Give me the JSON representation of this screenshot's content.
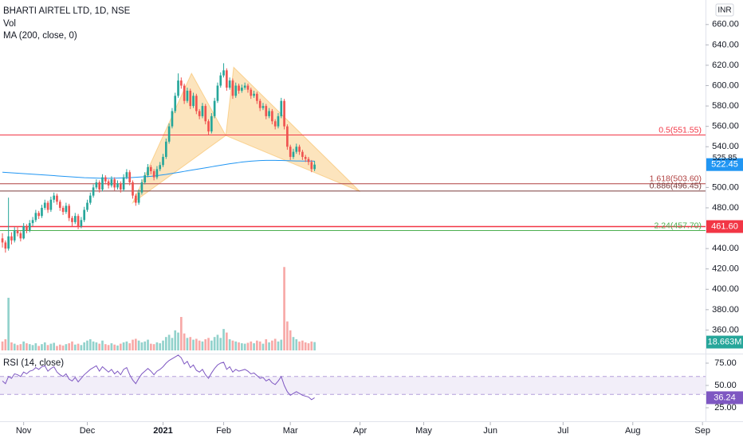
{
  "chart_data": {
    "type": "candlestick",
    "title": "BHARTI AIRTEL LTD, 1D, NSE",
    "currency": "INR",
    "up_color": "#26a69a",
    "down_color": "#ef5350",
    "xlim": [
      -0.8,
      232
    ],
    "xticks": [
      {
        "value": 7,
        "label": "Nov"
      },
      {
        "value": 28,
        "label": "Dec"
      },
      {
        "value": 53,
        "label": "2021"
      },
      {
        "value": 73,
        "label": "Feb"
      },
      {
        "value": 95,
        "label": "Mar"
      },
      {
        "value": 118,
        "label": "Apr"
      },
      {
        "value": 139,
        "label": "May"
      },
      {
        "value": 161,
        "label": "Jun"
      },
      {
        "value": 185,
        "label": "Jul"
      },
      {
        "value": 208,
        "label": "Aug"
      },
      {
        "value": 231,
        "label": "Sep"
      }
    ],
    "ylim": [
      340,
      670
    ],
    "yticks": [
      {
        "value": 660,
        "label": "660.00"
      },
      {
        "value": 640,
        "label": "640.00"
      },
      {
        "value": 620,
        "label": "620.00"
      },
      {
        "value": 600,
        "label": "600.00"
      },
      {
        "value": 580,
        "label": "580.00"
      },
      {
        "value": 560,
        "label": "560.00"
      },
      {
        "value": 540,
        "label": "540.00"
      },
      {
        "value": 500,
        "label": "500.00"
      },
      {
        "value": 480,
        "label": "480.00"
      },
      {
        "value": 440,
        "label": "440.00"
      },
      {
        "value": 420,
        "label": "420.00"
      },
      {
        "value": 400,
        "label": "400.00"
      },
      {
        "value": 380,
        "label": "380.00"
      },
      {
        "value": 360,
        "label": "360.00"
      }
    ],
    "ohlc": [
      [
        450,
        455,
        441,
        446
      ],
      [
        446,
        448,
        436,
        440
      ],
      [
        440,
        490,
        438,
        452
      ],
      [
        452,
        456,
        444,
        448
      ],
      [
        448,
        461,
        446,
        458
      ],
      [
        458,
        462,
        452,
        455
      ],
      [
        455,
        457,
        447,
        450
      ],
      [
        450,
        465,
        449,
        462
      ],
      [
        462,
        464,
        455,
        458
      ],
      [
        458,
        468,
        456,
        465
      ],
      [
        465,
        471,
        462,
        468
      ],
      [
        468,
        478,
        466,
        475
      ],
      [
        475,
        477,
        469,
        472
      ],
      [
        472,
        483,
        470,
        480
      ],
      [
        480,
        488,
        478,
        485
      ],
      [
        485,
        487,
        475,
        478
      ],
      [
        478,
        491,
        476,
        488
      ],
      [
        488,
        495,
        485,
        492
      ],
      [
        492,
        494,
        483,
        486
      ],
      [
        486,
        488,
        477,
        480
      ],
      [
        480,
        482,
        473,
        476
      ],
      [
        476,
        485,
        474,
        482
      ],
      [
        482,
        484,
        467,
        470
      ],
      [
        470,
        472,
        462,
        466
      ],
      [
        466,
        475,
        464,
        472
      ],
      [
        472,
        474,
        459,
        462
      ],
      [
        462,
        471,
        460,
        468
      ],
      [
        468,
        481,
        466,
        478
      ],
      [
        478,
        488,
        476,
        485
      ],
      [
        485,
        495,
        483,
        492
      ],
      [
        492,
        503,
        490,
        500
      ],
      [
        500,
        508,
        498,
        505
      ],
      [
        505,
        507,
        495,
        498
      ],
      [
        498,
        513,
        496,
        510
      ],
      [
        510,
        512,
        503,
        506
      ],
      [
        506,
        508,
        499,
        502
      ],
      [
        502,
        511,
        500,
        508
      ],
      [
        508,
        510,
        497,
        500
      ],
      [
        500,
        507,
        498,
        504
      ],
      [
        504,
        506,
        495,
        498
      ],
      [
        498,
        513,
        496,
        510
      ],
      [
        510,
        518,
        508,
        515
      ],
      [
        515,
        517,
        502,
        505
      ],
      [
        505,
        507,
        489,
        492
      ],
      [
        492,
        494,
        482,
        485
      ],
      [
        485,
        498,
        483,
        495
      ],
      [
        495,
        508,
        493,
        505
      ],
      [
        505,
        515,
        503,
        512
      ],
      [
        512,
        523,
        510,
        520
      ],
      [
        520,
        522,
        513,
        516
      ],
      [
        516,
        518,
        507,
        510
      ],
      [
        510,
        521,
        508,
        518
      ],
      [
        518,
        525,
        516,
        522
      ],
      [
        522,
        533,
        520,
        530
      ],
      [
        530,
        548,
        528,
        545
      ],
      [
        545,
        563,
        543,
        560
      ],
      [
        560,
        578,
        558,
        575
      ],
      [
        575,
        593,
        573,
        590
      ],
      [
        590,
        612,
        588,
        605
      ],
      [
        605,
        608,
        597,
        600
      ],
      [
        600,
        602,
        582,
        585
      ],
      [
        585,
        598,
        583,
        595
      ],
      [
        595,
        597,
        577,
        580
      ],
      [
        580,
        593,
        578,
        590
      ],
      [
        590,
        592,
        572,
        575
      ],
      [
        575,
        577,
        567,
        570
      ],
      [
        570,
        583,
        568,
        580
      ],
      [
        580,
        582,
        562,
        565
      ],
      [
        565,
        567,
        552,
        555
      ],
      [
        555,
        573,
        553,
        570
      ],
      [
        570,
        588,
        568,
        585
      ],
      [
        585,
        603,
        583,
        600
      ],
      [
        600,
        613,
        598,
        610
      ],
      [
        610,
        622,
        608,
        615
      ],
      [
        615,
        617,
        595,
        598
      ],
      [
        598,
        608,
        596,
        605
      ],
      [
        605,
        607,
        587,
        590
      ],
      [
        590,
        603,
        588,
        600
      ],
      [
        600,
        602,
        592,
        595
      ],
      [
        595,
        601,
        593,
        598
      ],
      [
        598,
        603,
        596,
        600
      ],
      [
        600,
        602,
        593,
        596
      ],
      [
        596,
        598,
        587,
        590
      ],
      [
        590,
        595,
        588,
        592
      ],
      [
        592,
        594,
        582,
        585
      ],
      [
        585,
        587,
        575,
        578
      ],
      [
        578,
        583,
        576,
        580
      ],
      [
        580,
        582,
        567,
        570
      ],
      [
        570,
        578,
        568,
        575
      ],
      [
        575,
        577,
        562,
        565
      ],
      [
        565,
        567,
        557,
        560
      ],
      [
        560,
        573,
        558,
        570
      ],
      [
        570,
        588,
        568,
        585
      ],
      [
        585,
        587,
        557,
        560
      ],
      [
        560,
        562,
        537,
        540
      ],
      [
        540,
        542,
        527,
        530
      ],
      [
        530,
        538,
        528,
        535
      ],
      [
        535,
        543,
        533,
        540
      ],
      [
        540,
        542,
        532,
        535
      ],
      [
        535,
        537,
        527,
        530
      ],
      [
        530,
        532,
        525,
        528
      ],
      [
        528,
        530,
        522,
        525
      ],
      [
        525,
        527,
        515,
        518
      ],
      [
        518,
        526,
        516,
        522.45
      ]
    ],
    "volume": {
      "name": "Vol",
      "vlim": [
        0,
        250
      ],
      "last_label": "18.663M",
      "values": [
        20,
        25,
        118,
        18,
        15,
        12,
        14,
        20,
        16,
        14,
        12,
        16,
        10,
        14,
        18,
        12,
        15,
        17,
        10,
        13,
        11,
        14,
        16,
        20,
        13,
        15,
        12,
        18,
        22,
        25,
        20,
        18,
        15,
        22,
        14,
        12,
        16,
        13,
        11,
        15,
        18,
        20,
        16,
        24,
        26,
        22,
        18,
        20,
        24,
        15,
        14,
        18,
        16,
        22,
        30,
        35,
        28,
        45,
        40,
        75,
        38,
        28,
        30,
        24,
        26,
        22,
        20,
        25,
        28,
        22,
        30,
        35,
        28,
        48,
        40,
        25,
        22,
        20,
        18,
        16,
        15,
        17,
        20,
        16,
        22,
        20,
        15,
        25,
        18,
        22,
        26,
        20,
        24,
        187,
        65,
        45,
        30,
        25,
        20,
        22,
        18,
        16,
        20,
        18.663
      ]
    },
    "ma": {
      "name": "MA (200, close, 0)",
      "color": "#2196f3",
      "values": [
        515,
        514.8,
        514.6,
        514.4,
        514.2,
        514,
        513.8,
        513.6,
        513.4,
        513.2,
        513,
        512.8,
        512.6,
        512.4,
        512.2,
        512,
        511.8,
        511.6,
        511.4,
        511.2,
        511,
        510.8,
        510.6,
        510.4,
        510.2,
        510,
        509.8,
        509.6,
        509.5,
        509.4,
        509.3,
        509.2,
        509.1,
        509,
        509,
        509,
        509,
        509.1,
        509.2,
        509.3,
        509.4,
        509.5,
        509.6,
        509.8,
        510,
        510.2,
        510.4,
        510.6,
        510.8,
        511,
        511.3,
        511.6,
        512,
        512.4,
        512.8,
        513.3,
        513.8,
        514.3,
        514.8,
        515.3,
        515.8,
        516.3,
        516.8,
        517.3,
        517.8,
        518.3,
        518.8,
        519.3,
        519.8,
        520.3,
        520.8,
        521.3,
        521.8,
        522.3,
        522.8,
        523.3,
        523.7,
        524.1,
        524.5,
        524.9,
        525.2,
        525.5,
        525.8,
        526,
        526.2,
        526.4,
        526.5,
        526.6,
        526.6,
        526.6,
        526.6,
        526.5,
        526.5,
        526.4,
        526.3,
        526.2,
        526.1,
        526,
        526,
        525.95,
        525.93,
        525.9,
        525.88,
        525.85
      ]
    },
    "levels": [
      {
        "value": 551.55,
        "label": "0.5(551.55)",
        "color": "#f23645"
      },
      {
        "value": 503.6,
        "label": "1.618(503.60)",
        "color": "#b04040"
      },
      {
        "value": 496.45,
        "label": "0.886(496.45)",
        "color": "#7a3b3b"
      },
      {
        "value": 461.6,
        "label": "461.60",
        "color": "#f23645",
        "badge": true
      },
      {
        "value": 457.7,
        "label": "2.24(457.70)",
        "color": "#4caf50"
      }
    ],
    "pattern": {
      "color": "#f5a623",
      "points": [
        [
          43,
          485
        ],
        [
          62.4,
          612
        ],
        [
          73.7,
          551
        ],
        [
          76.3,
          618
        ],
        [
          118,
          496
        ]
      ]
    },
    "rsi": {
      "name": "RSI (14, close)",
      "color": "#7e57c2",
      "band": [
        40,
        60
      ],
      "ylim": [
        10,
        85
      ],
      "yticks": [
        {
          "value": 75,
          "label": "75.00"
        },
        {
          "value": 50,
          "label": "50.00"
        },
        {
          "value": 25,
          "label": "25.00"
        }
      ],
      "values": [
        55,
        52,
        60,
        58,
        63,
        62,
        60,
        65,
        63,
        66,
        67,
        70,
        68,
        71,
        72,
        66,
        69,
        71,
        65,
        62,
        60,
        63,
        57,
        55,
        59,
        54,
        58,
        62,
        65,
        68,
        70,
        72,
        66,
        71,
        68,
        65,
        68,
        63,
        66,
        62,
        68,
        70,
        62,
        56,
        52,
        58,
        63,
        66,
        69,
        66,
        62,
        66,
        68,
        71,
        75,
        78,
        80,
        82,
        84,
        81,
        74,
        77,
        70,
        73,
        67,
        65,
        68,
        62,
        58,
        64,
        69,
        73,
        75,
        76,
        68,
        71,
        65,
        68,
        66,
        67,
        68,
        66,
        63,
        64,
        61,
        58,
        59,
        55,
        57,
        53,
        51,
        55,
        60,
        50,
        43,
        39,
        41,
        43,
        41,
        39,
        38,
        37,
        34,
        36.24
      ]
    }
  }
}
